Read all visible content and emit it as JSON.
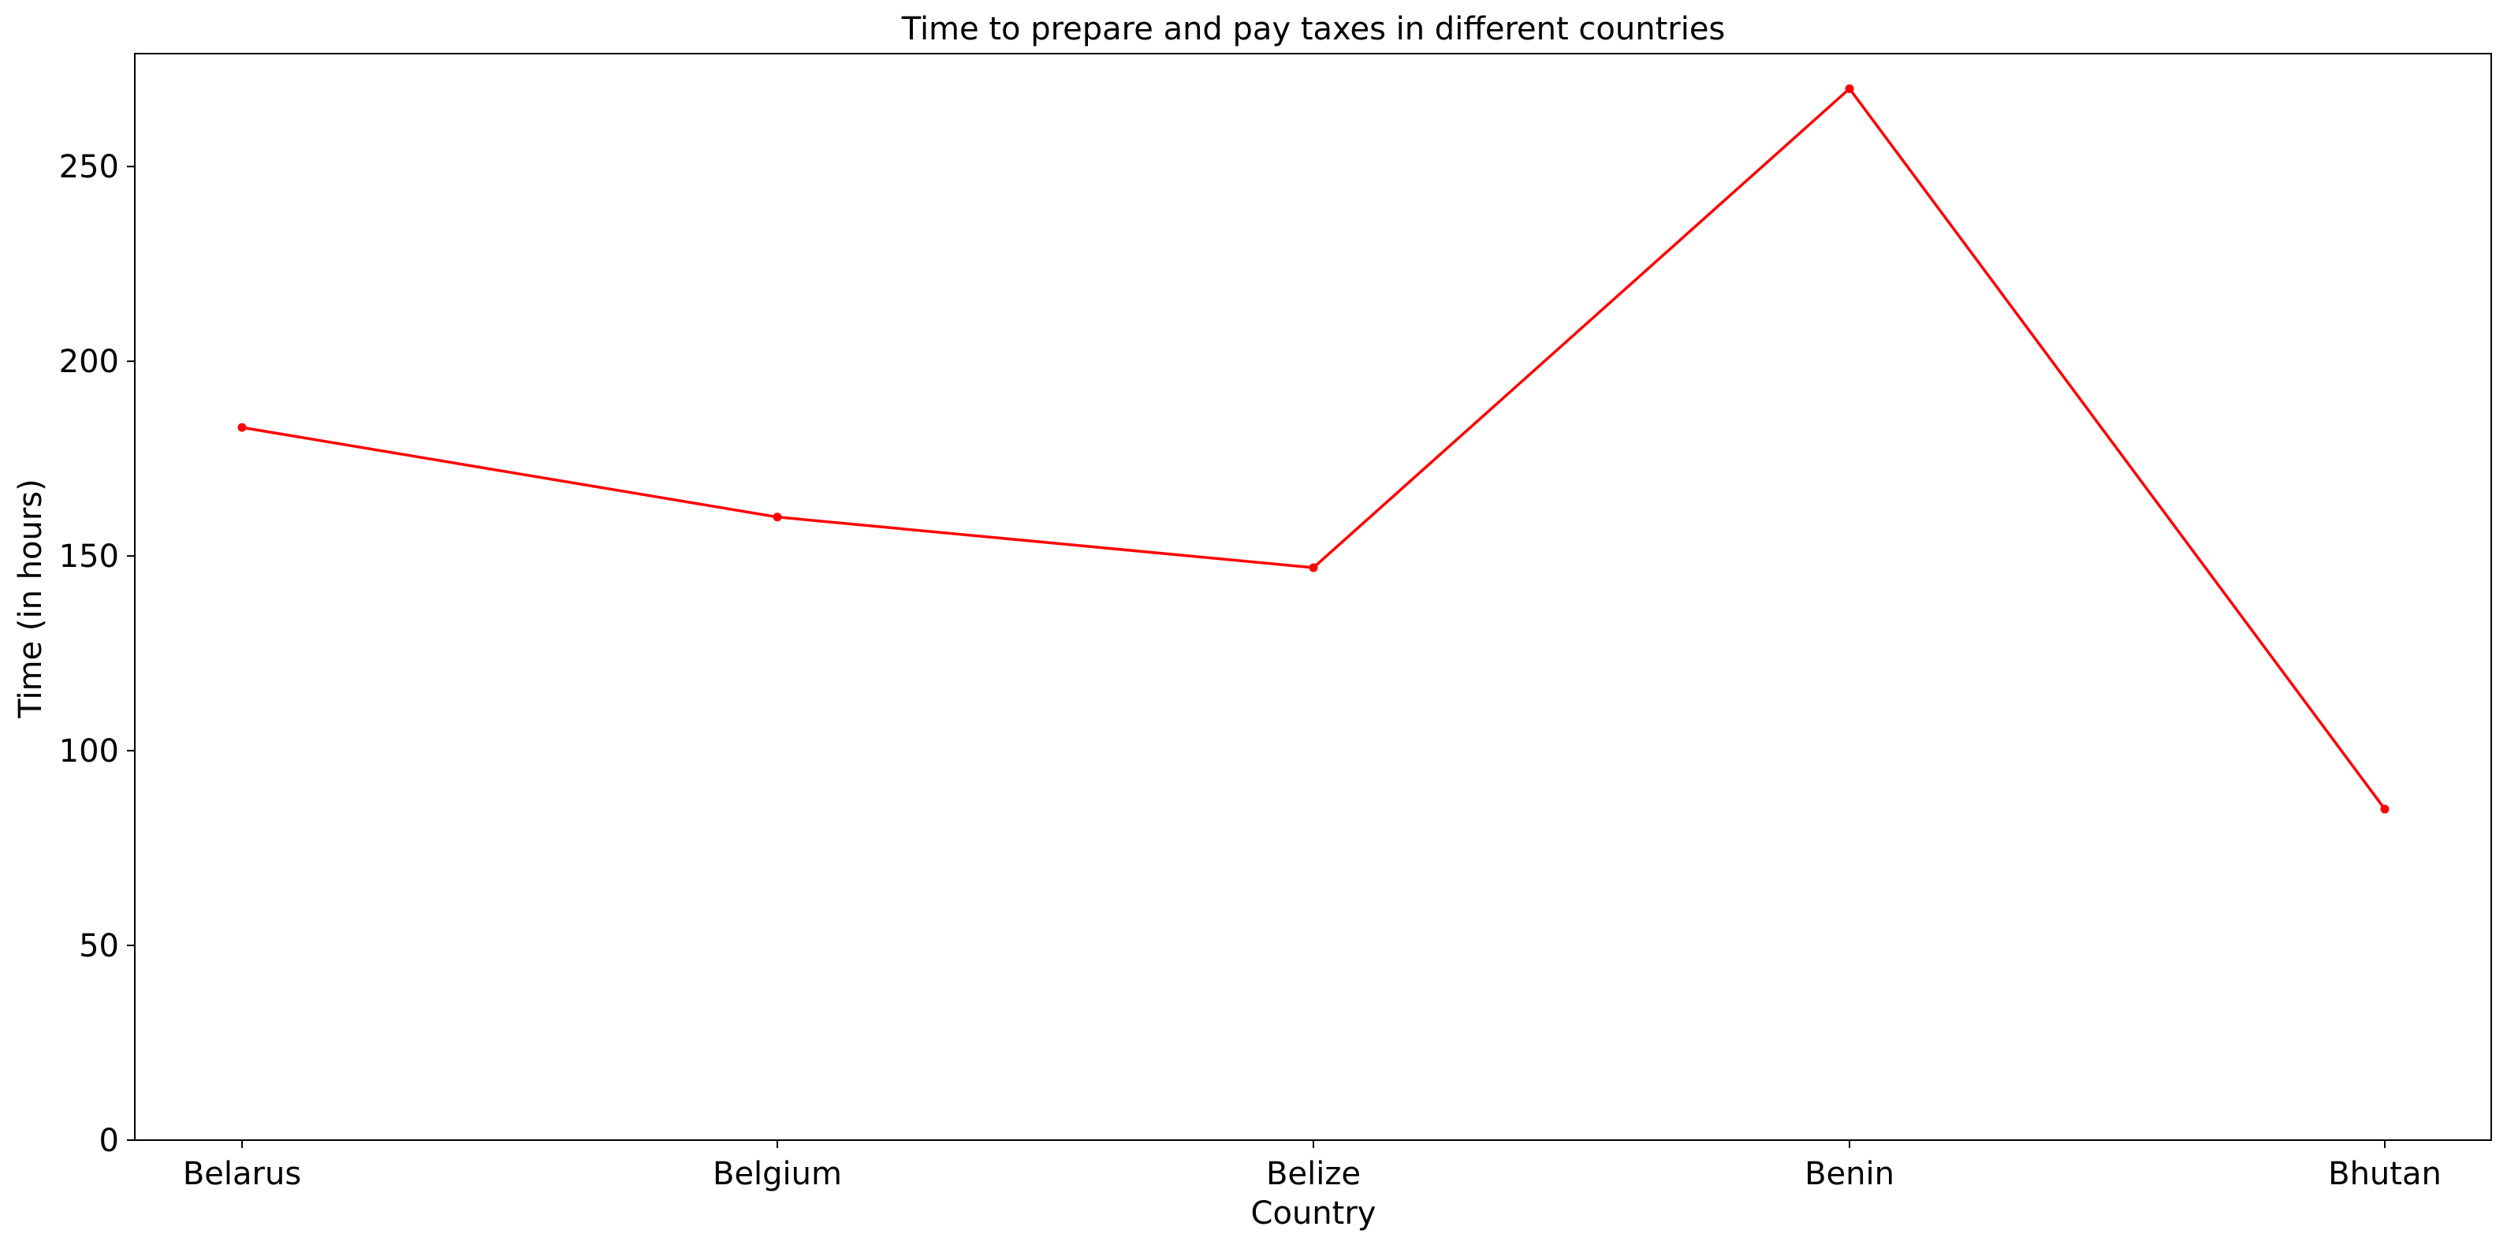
{
  "chart_data": {
    "type": "line",
    "title": "Time to prepare and pay taxes in different countries",
    "xlabel": "Country",
    "ylabel": "Time (in hours)",
    "categories": [
      "Belarus",
      "Belgium",
      "Belize",
      "Benin",
      "Bhutan"
    ],
    "series": [
      {
        "values": [
          183,
          160,
          147,
          270,
          85
        ],
        "color": "#ff0000",
        "marker": "circle"
      }
    ],
    "ylim": [
      0,
      279
    ],
    "yticks": [
      0,
      50,
      100,
      150,
      200,
      250
    ],
    "grid": false,
    "legend": "none"
  }
}
